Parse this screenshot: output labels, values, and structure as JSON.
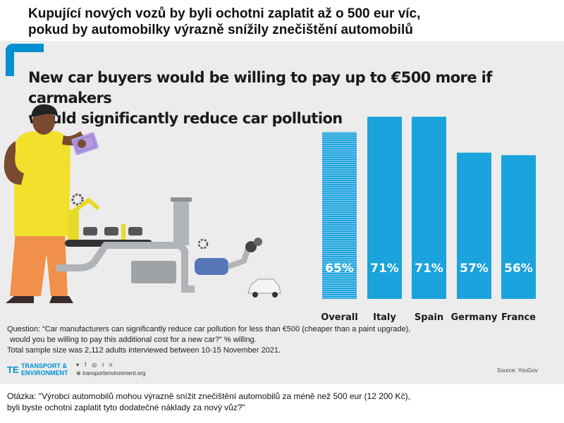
{
  "header": {
    "title_cz_line1": "Kupující nových vozů by byli ochotni zaplatit až o 500 eur víc,",
    "title_cz_line2": "pokud by automobilky výrazně snížily znečištění automobilů"
  },
  "infographic": {
    "title_line1": "New car buyers would be willing to pay up to €500 more if carmakers",
    "title_line2": "would significantly reduce car pollution",
    "question_line1": "Question: “Car manufacturers can significantly reduce car pollution for less than €500 (cheaper than a paint upgrade),",
    "question_line2": "would you be willing to pay this additional cost for a new car?”  % willing.",
    "sample_note": "Total sample size was 2,112 adults interviewed between 10-15 November 2021.",
    "source": "Source: YouGov"
  },
  "footer": {
    "logo_line1": "TRANSPORT &",
    "logo_line2": "ENVIRONMENT",
    "website": "transportenvironment.org",
    "social_icons": [
      "twitter-icon",
      "facebook-icon",
      "instagram-icon",
      "linkedin-icon"
    ]
  },
  "translation": {
    "line1": "Otázka: \"Výrobci automobilů mohou výrazně snížit znečištění automobilů za méně než 500 eur (12 200 Kč),",
    "line2": "byli byste ochotni zaplatit tyto dodatečné náklady za nový vůz?\""
  },
  "chart_data": {
    "type": "bar",
    "categories": [
      "Overall",
      "Italy",
      "Spain",
      "Germany",
      "France"
    ],
    "values": [
      65,
      71,
      71,
      57,
      56
    ],
    "value_labels": [
      "65%",
      "71%",
      "71%",
      "57%",
      "56%"
    ],
    "unit": "%",
    "ylim": [
      0,
      100
    ],
    "grid": false,
    "axes_visible": false,
    "colors": {
      "bar": "#1aa3dc",
      "overall_pattern": "#1aa3dc",
      "label": "#ffffff",
      "axis_text": "#1a1a1a"
    }
  },
  "colors": {
    "brand_blue": "#0090d0",
    "panel_bg": "#ececec",
    "shirt": "#f2e12c",
    "trousers": "#f0904a"
  }
}
